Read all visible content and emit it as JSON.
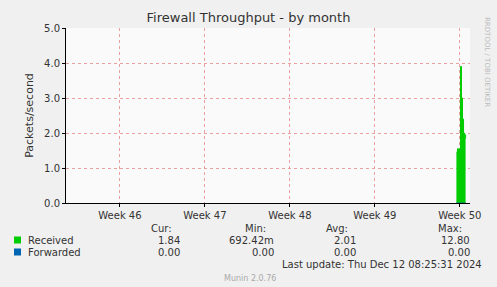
{
  "chart_data": {
    "type": "area",
    "title": "Firewall Throughput - by month",
    "y_label": "Packets/second",
    "xlim": [
      45.365,
      50.12
    ],
    "xticks": [
      {
        "value": 46,
        "label": "Week 46"
      },
      {
        "value": 47,
        "label": "Week 47"
      },
      {
        "value": 48,
        "label": "Week 48"
      },
      {
        "value": 49,
        "label": "Week 49"
      },
      {
        "value": 50,
        "label": "Week 50"
      }
    ],
    "ylim": [
      0,
      5
    ],
    "yticks": [
      {
        "value": 0,
        "label": "0.0"
      },
      {
        "value": 1,
        "label": "1.0"
      },
      {
        "value": 2,
        "label": "2.0"
      },
      {
        "value": 3,
        "label": "3.0"
      },
      {
        "value": 4,
        "label": "4.0"
      },
      {
        "value": 5,
        "label": "5.0"
      }
    ],
    "grid": true,
    "x": [
      49.96,
      49.972,
      49.984,
      49.996,
      50.008,
      50.02,
      50.032,
      50.044,
      50.056,
      50.068
    ],
    "stat_headers": [
      "Cur:",
      "Min:",
      "Avg:",
      "Max:"
    ],
    "series": [
      {
        "name": "Received",
        "color": "#00cc00",
        "type": "area",
        "values": [
          1.45,
          1.55,
          1.5,
          1.55,
          3.9,
          3.0,
          2.4,
          2.0,
          1.95,
          1.84
        ],
        "cur": {
          "value": 1.84,
          "label": "1.84"
        },
        "min": {
          "value": 0.69242,
          "label": "692.42m"
        },
        "avg": {
          "value": 2.01,
          "label": "2.01"
        },
        "max": {
          "value": 12.8,
          "label": "12.80"
        }
      },
      {
        "name": "Forwarded",
        "color": "#0066b3",
        "type": "line",
        "values": [
          0,
          0,
          0,
          0,
          0,
          0,
          0,
          0,
          0,
          0
        ],
        "cur": {
          "value": 0,
          "label": "0.00"
        },
        "min": {
          "value": 0,
          "label": "0.00"
        },
        "avg": {
          "value": 0,
          "label": "0.00"
        },
        "max": {
          "value": 0,
          "label": "0.00"
        }
      }
    ],
    "footer": "Last update: Thu Dec 12 08:25:31 2024",
    "credit": "Munin 2.0.76",
    "watermark": "RRDTOOL / TOBI OETIKER"
  }
}
